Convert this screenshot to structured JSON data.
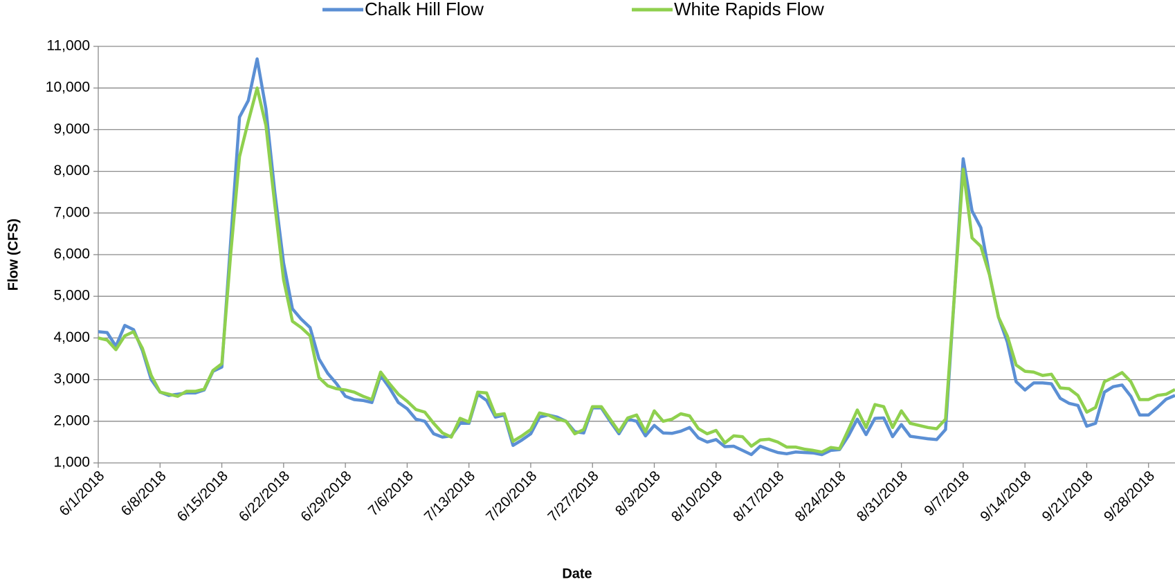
{
  "chart_data": {
    "type": "line",
    "x_label": "Date",
    "y_label": "Flow (CFS)",
    "x": [
      "6/1/2018",
      "6/2/2018",
      "6/3/2018",
      "6/4/2018",
      "6/5/2018",
      "6/6/2018",
      "6/7/2018",
      "6/8/2018",
      "6/9/2018",
      "6/10/2018",
      "6/11/2018",
      "6/12/2018",
      "6/13/2018",
      "6/14/2018",
      "6/15/2018",
      "6/16/2018",
      "6/17/2018",
      "6/18/2018",
      "6/19/2018",
      "6/20/2018",
      "6/21/2018",
      "6/22/2018",
      "6/23/2018",
      "6/24/2018",
      "6/25/2018",
      "6/26/2018",
      "6/27/2018",
      "6/28/2018",
      "6/29/2018",
      "6/30/2018",
      "7/1/2018",
      "7/2/2018",
      "7/3/2018",
      "7/4/2018",
      "7/5/2018",
      "7/6/2018",
      "7/7/2018",
      "7/8/2018",
      "7/9/2018",
      "7/10/2018",
      "7/11/2018",
      "7/12/2018",
      "7/13/2018",
      "7/14/2018",
      "7/15/2018",
      "7/16/2018",
      "7/17/2018",
      "7/18/2018",
      "7/19/2018",
      "7/20/2018",
      "7/21/2018",
      "7/22/2018",
      "7/23/2018",
      "7/24/2018",
      "7/25/2018",
      "7/26/2018",
      "7/27/2018",
      "7/28/2018",
      "7/29/2018",
      "7/30/2018",
      "7/31/2018",
      "8/1/2018",
      "8/2/2018",
      "8/3/2018",
      "8/4/2018",
      "8/5/2018",
      "8/6/2018",
      "8/7/2018",
      "8/8/2018",
      "8/9/2018",
      "8/10/2018",
      "8/11/2018",
      "8/12/2018",
      "8/13/2018",
      "8/14/2018",
      "8/15/2018",
      "8/16/2018",
      "8/17/2018",
      "8/18/2018",
      "8/19/2018",
      "8/20/2018",
      "8/21/2018",
      "8/22/2018",
      "8/23/2018",
      "8/24/2018",
      "8/25/2018",
      "8/26/2018",
      "8/27/2018",
      "8/28/2018",
      "8/29/2018",
      "8/30/2018",
      "8/31/2018",
      "9/1/2018",
      "9/2/2018",
      "9/3/2018",
      "9/4/2018",
      "9/5/2018",
      "9/6/2018",
      "9/7/2018",
      "9/8/2018",
      "9/9/2018",
      "9/10/2018",
      "9/11/2018",
      "9/12/2018",
      "9/13/2018",
      "9/14/2018",
      "9/15/2018",
      "9/16/2018",
      "9/17/2018",
      "9/18/2018",
      "9/19/2018",
      "9/20/2018",
      "9/21/2018",
      "9/22/2018",
      "9/23/2018",
      "9/24/2018",
      "9/25/2018",
      "9/26/2018",
      "9/27/2018",
      "9/28/2018",
      "9/29/2018",
      "9/30/2018",
      "10/1/2018"
    ],
    "xlim": [
      "6/1/2018",
      "10/1/2018"
    ],
    "xticks": [
      "6/1/2018",
      "6/8/2018",
      "6/15/2018",
      "6/22/2018",
      "6/29/2018",
      "7/6/2018",
      "7/13/2018",
      "7/20/2018",
      "7/27/2018",
      "8/3/2018",
      "8/10/2018",
      "8/17/2018",
      "8/24/2018",
      "8/31/2018",
      "9/7/2018",
      "9/14/2018",
      "9/21/2018",
      "9/28/2018"
    ],
    "ylim": [
      1000,
      11000
    ],
    "yticks": [
      {
        "value": 1000,
        "label": "1,000"
      },
      {
        "value": 2000,
        "label": "2,000"
      },
      {
        "value": 3000,
        "label": "3,000"
      },
      {
        "value": 4000,
        "label": "4,000"
      },
      {
        "value": 5000,
        "label": "5,000"
      },
      {
        "value": 6000,
        "label": "6,000"
      },
      {
        "value": 7000,
        "label": "7,000"
      },
      {
        "value": 8000,
        "label": "8,000"
      },
      {
        "value": 9000,
        "label": "9,000"
      },
      {
        "value": 10000,
        "label": "10,000"
      },
      {
        "value": 11000,
        "label": "11,000"
      }
    ],
    "grid": true,
    "legend": "top",
    "series": [
      {
        "name": "Chalk Hill Flow",
        "color": "#5b8fd4",
        "values": [
          4150,
          4130,
          3800,
          4300,
          4200,
          3700,
          3000,
          2700,
          2620,
          2650,
          2680,
          2680,
          2750,
          3200,
          3300,
          6300,
          9300,
          9700,
          10700,
          9500,
          7500,
          5800,
          4700,
          4450,
          4250,
          3500,
          3150,
          2900,
          2600,
          2520,
          2500,
          2450,
          3100,
          2800,
          2450,
          2300,
          2050,
          2000,
          1700,
          1620,
          1650,
          1950,
          1950,
          2650,
          2500,
          2100,
          2150,
          1420,
          1550,
          1700,
          2100,
          2150,
          2100,
          2000,
          1750,
          1720,
          2320,
          2320,
          2000,
          1700,
          2050,
          2000,
          1650,
          1900,
          1720,
          1710,
          1760,
          1850,
          1600,
          1500,
          1560,
          1390,
          1400,
          1300,
          1200,
          1400,
          1320,
          1250,
          1220,
          1260,
          1250,
          1240,
          1200,
          1300,
          1320,
          1650,
          2050,
          1680,
          2070,
          2080,
          1630,
          1920,
          1640,
          1610,
          1580,
          1560,
          1800,
          5000,
          8300,
          7050,
          6650,
          5500,
          4500,
          3900,
          2950,
          2750,
          2920,
          2920,
          2900,
          2550,
          2430,
          2380,
          1880,
          1950,
          2700,
          2830,
          2870,
          2600,
          2150,
          2150,
          2330,
          2530,
          2620
        ]
      },
      {
        "name": "White Rapids Flow",
        "color": "#8fd04e",
        "values": [
          4000,
          3950,
          3720,
          4050,
          4150,
          3750,
          3100,
          2700,
          2650,
          2600,
          2720,
          2720,
          2770,
          3220,
          3380,
          6000,
          8350,
          9200,
          10000,
          9100,
          7200,
          5400,
          4400,
          4250,
          4050,
          3050,
          2850,
          2780,
          2750,
          2700,
          2600,
          2520,
          3180,
          2900,
          2650,
          2480,
          2280,
          2220,
          1950,
          1720,
          1620,
          2070,
          1980,
          2700,
          2680,
          2150,
          2180,
          1520,
          1650,
          1800,
          2200,
          2150,
          2050,
          2000,
          1700,
          1800,
          2350,
          2350,
          2050,
          1750,
          2080,
          2150,
          1750,
          2250,
          2000,
          2050,
          2180,
          2130,
          1820,
          1700,
          1780,
          1480,
          1650,
          1630,
          1400,
          1550,
          1570,
          1500,
          1380,
          1380,
          1330,
          1300,
          1260,
          1370,
          1340,
          1800,
          2270,
          1850,
          2400,
          2350,
          1850,
          2250,
          1950,
          1900,
          1850,
          1820,
          2050,
          5000,
          8050,
          6400,
          6200,
          5500,
          4500,
          4050,
          3350,
          3200,
          3180,
          3100,
          3130,
          2800,
          2780,
          2620,
          2220,
          2330,
          2950,
          3050,
          3170,
          2950,
          2520,
          2520,
          2620,
          2650,
          2760
        ]
      }
    ]
  }
}
